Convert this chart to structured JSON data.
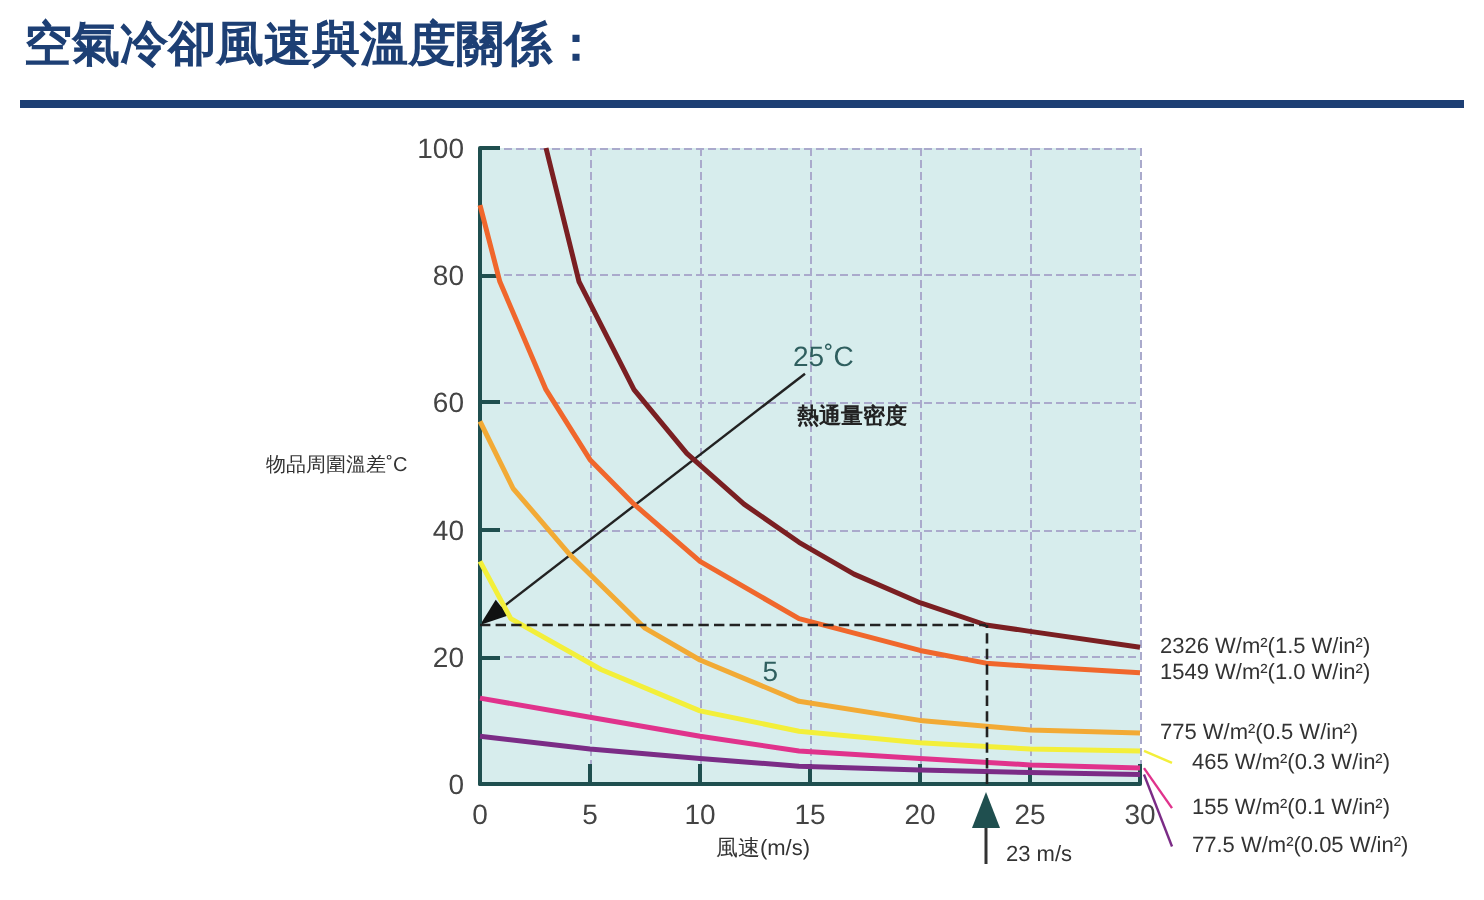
{
  "chart_data": {
    "type": "line",
    "title": "空氣冷卻風速與溫度關係：",
    "xlabel": "風速(m/s)",
    "ylabel": "物品周圍溫差˚C",
    "xlim": [
      0,
      30
    ],
    "xticks": [
      0,
      5,
      10,
      15,
      20,
      25,
      30
    ],
    "ylim": [
      0,
      100
    ],
    "yticks": [
      0,
      20,
      40,
      60,
      80,
      100
    ],
    "grid": true,
    "marker": "none",
    "line_style": "solid",
    "series": [
      {
        "name": "2326 W/m²(1.5 W/in²)",
        "color": "#7a1f22",
        "x": [
          3,
          4.5,
          7,
          9.4,
          12,
          14.5,
          17,
          20,
          23,
          25,
          30
        ],
        "values": [
          100,
          79,
          62,
          52,
          44,
          38,
          33,
          28.5,
          25,
          24,
          21.5
        ]
      },
      {
        "name": "1549 W/m²(1.0 W/in²)",
        "color": "#f0672c",
        "x": [
          0,
          0.9,
          3,
          5,
          7,
          10,
          14.5,
          20,
          23,
          25,
          30
        ],
        "values": [
          91,
          79,
          62,
          51,
          44,
          35,
          26,
          21,
          19,
          18.5,
          17.5
        ]
      },
      {
        "name": "775 W/m²(0.5 W/in²)",
        "color": "#f2aa35",
        "x": [
          0,
          1.5,
          4.1,
          7.5,
          10,
          14.5,
          20,
          25,
          30
        ],
        "values": [
          57,
          46.5,
          36,
          24.5,
          19.5,
          13,
          10,
          8.5,
          8
        ]
      },
      {
        "name": "465 W/m²(0.3 W/in²)",
        "color": "#f3ef3a",
        "x": [
          0,
          1.4,
          5.5,
          10,
          14.5,
          20,
          25,
          30
        ],
        "values": [
          35,
          26,
          18,
          11.5,
          8.3,
          6.5,
          5.5,
          5.2
        ]
      },
      {
        "name": "155 W/m²(0.1 W/in²)",
        "color": "#e0338c",
        "x": [
          0,
          5,
          10,
          14.5,
          20,
          25,
          30
        ],
        "values": [
          13.5,
          10.5,
          7.5,
          5.2,
          4,
          3,
          2.5
        ]
      },
      {
        "name": "77.5 W/m²(0.05 W/in²)",
        "color": "#7b2c86",
        "x": [
          0,
          5,
          10,
          14.5,
          20,
          25,
          30
        ],
        "values": [
          7.5,
          5.5,
          4,
          2.8,
          2.2,
          1.8,
          1.5
        ]
      }
    ],
    "ref_lines": [
      {
        "axis": "y",
        "value": 25,
        "label": "25˚C",
        "line_style": "dashed",
        "color": "#222222"
      },
      {
        "axis": "x",
        "value": 23,
        "label": "23 m/s",
        "line_style": "dashed",
        "color": "#222222"
      }
    ],
    "annotations": [
      "熱通量密度",
      "5"
    ]
  }
}
